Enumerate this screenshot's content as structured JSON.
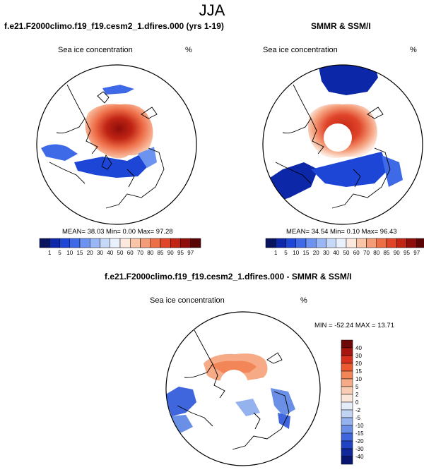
{
  "figure": {
    "season": "JJA",
    "left_panel": {
      "title": "f.e21.F2000climo.f19_f19.cesm2_1.dfires.000 (yrs 1-19)",
      "variable": "Sea ice concentration",
      "units": "%",
      "mean_text": "MEAN=  38.03  Min=   0.00  Max=  97.28",
      "mean": 38.03,
      "min": 0.0,
      "max": 97.28
    },
    "right_panel": {
      "title": "SMMR & SSM/I",
      "variable": "Sea ice concentration",
      "units": "%",
      "mean_text": "MEAN=  34.54  Min=   0.10  Max=  96.43",
      "mean": 34.54,
      "min": 0.1,
      "max": 96.43
    },
    "diff_panel": {
      "title": "f.e21.F2000climo.f19_f19.cesm2_1.dfires.000 - SMMR & SSM/I",
      "variable": "Sea ice concentration",
      "units": "%",
      "minmax_text": "MIN = -52.24 MAX =  13.71",
      "min": -52.24,
      "max": 13.71
    },
    "colors": {
      "blue_dark": "#0a1e8c",
      "blue_mid": "#2f5fe0",
      "blue_light": "#bcd3f5",
      "red_dark": "#7a0a0a",
      "red_mid": "#e8502a",
      "red_light": "#f7c2a8",
      "land_outline": "#000000"
    }
  },
  "chart_data": [
    {
      "type": "heatmap",
      "title": "f.e21.F2000climo.f19_f19.cesm2_1.dfires.000 (yrs 1-19)",
      "subtitle": "Sea ice concentration",
      "units": "%",
      "colorbar": {
        "orientation": "horizontal",
        "levels": [
          "1",
          "5",
          "10",
          "15",
          "20",
          "30",
          "40",
          "50",
          "60",
          "70",
          "80",
          "85",
          "90",
          "95",
          "97"
        ],
        "colors": [
          "#08155e",
          "#0c28a8",
          "#1d46d6",
          "#3e6ae8",
          "#6c93f0",
          "#9ab7f5",
          "#c6d8f8",
          "#e8f0fb",
          "#fce8dc",
          "#f9c5a8",
          "#f49c78",
          "#ee6e48",
          "#e0452a",
          "#c02414",
          "#8e0d0a",
          "#5a0505"
        ]
      },
      "stats": {
        "mean": 38.03,
        "min": 0.0,
        "max": 97.28
      }
    },
    {
      "type": "heatmap",
      "title": "SMMR & SSM/I",
      "subtitle": "Sea ice concentration",
      "units": "%",
      "colorbar": {
        "orientation": "horizontal",
        "levels": [
          "1",
          "5",
          "10",
          "15",
          "20",
          "30",
          "40",
          "50",
          "60",
          "70",
          "80",
          "85",
          "90",
          "95",
          "97"
        ],
        "colors": [
          "#08155e",
          "#0c28a8",
          "#1d46d6",
          "#3e6ae8",
          "#6c93f0",
          "#9ab7f5",
          "#c6d8f8",
          "#e8f0fb",
          "#fce8dc",
          "#f9c5a8",
          "#f49c78",
          "#ee6e48",
          "#e0452a",
          "#c02414",
          "#8e0d0a",
          "#5a0505"
        ]
      },
      "stats": {
        "mean": 34.54,
        "min": 0.1,
        "max": 96.43
      }
    },
    {
      "type": "heatmap",
      "title": "f.e21.F2000climo.f19_f19.cesm2_1.dfires.000 - SMMR & SSM/I",
      "subtitle": "Sea ice concentration",
      "units": "%",
      "colorbar": {
        "orientation": "vertical",
        "levels": [
          "40",
          "30",
          "20",
          "15",
          "10",
          "5",
          "2",
          "0",
          "-2",
          "-5",
          "-10",
          "-15",
          "-20",
          "-30",
          "-40"
        ],
        "colors": [
          "#6e0808",
          "#a8140e",
          "#d8301c",
          "#ec5a32",
          "#f28658",
          "#f6aa86",
          "#f9ccb4",
          "#fbe6da",
          "#e4ecf8",
          "#c2d4f4",
          "#94b2ee",
          "#6a8fe6",
          "#3f66dc",
          "#1f44c4",
          "#10289a",
          "#081670"
        ]
      },
      "stats": {
        "min": -52.24,
        "max": 13.71
      }
    }
  ]
}
